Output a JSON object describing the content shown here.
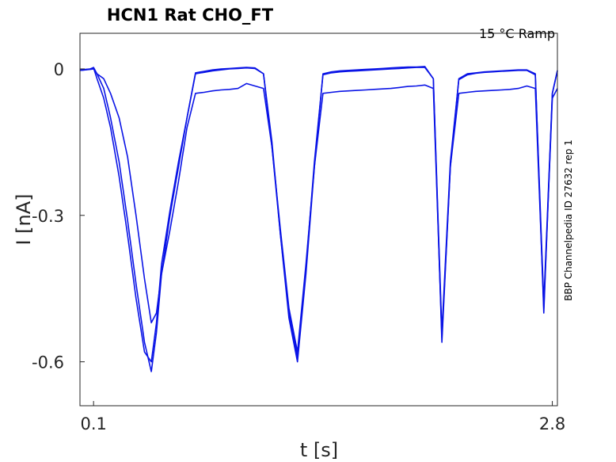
{
  "chart_data": {
    "type": "line",
    "title": "HCN1  Rat  CHO_FT",
    "annotation_top_right": "15 °C  Ramp",
    "annotation_side": "BBP Channelpedia ID 27632 rep 1",
    "xlabel": "t [s]",
    "ylabel": "I [nA]",
    "xlim": [
      0.02,
      2.83
    ],
    "ylim": [
      -0.69,
      0.073
    ],
    "x_ticks": [
      0.1,
      2.8
    ],
    "x_tick_labels": [
      "0.1",
      "2.8"
    ],
    "y_ticks": [
      0,
      -0.3,
      -0.6
    ],
    "y_tick_labels": [
      "0",
      "-0.3",
      "-0.6"
    ],
    "line_color": "#0a14e6",
    "grid": false,
    "series": [
      {
        "x": [
          0.02,
          0.05,
          0.08,
          0.1,
          0.12,
          0.16,
          0.2,
          0.25,
          0.3,
          0.35,
          0.4,
          0.44,
          0.47,
          0.5,
          0.55,
          0.6,
          0.65,
          0.7,
          0.75,
          0.8,
          0.85,
          0.9,
          0.95,
          1.0,
          1.05,
          1.1,
          1.15,
          1.2,
          1.25,
          1.3,
          1.35,
          1.4,
          1.45,
          1.5,
          1.55,
          1.6,
          1.65,
          1.7,
          1.75,
          1.8,
          1.85,
          1.9,
          1.95,
          2.0,
          2.05,
          2.1,
          2.15,
          2.2,
          2.25,
          2.3,
          2.35,
          2.4,
          2.45,
          2.5,
          2.55,
          2.6,
          2.65,
          2.7,
          2.75,
          2.8,
          2.83
        ],
        "y": [
          -0.002,
          -0.001,
          0.0,
          0.003,
          -0.01,
          -0.04,
          -0.1,
          -0.19,
          -0.31,
          -0.44,
          -0.56,
          -0.62,
          -0.54,
          -0.42,
          -0.3,
          -0.2,
          -0.1,
          -0.008,
          -0.005,
          -0.002,
          0.0,
          0.001,
          0.002,
          0.003,
          0.002,
          -0.01,
          -0.15,
          -0.34,
          -0.51,
          -0.6,
          -0.42,
          -0.2,
          -0.01,
          -0.006,
          -0.004,
          -0.003,
          -0.002,
          -0.001,
          0.0,
          0.001,
          0.002,
          0.003,
          0.004,
          0.004,
          0.005,
          -0.02,
          -0.56,
          -0.2,
          -0.02,
          -0.01,
          -0.008,
          -0.006,
          -0.005,
          -0.004,
          -0.003,
          -0.002,
          -0.002,
          -0.01,
          -0.5,
          -0.05,
          -0.003
        ]
      },
      {
        "x": [
          0.02,
          0.05,
          0.08,
          0.1,
          0.12,
          0.16,
          0.2,
          0.25,
          0.3,
          0.35,
          0.4,
          0.44,
          0.47,
          0.5,
          0.55,
          0.6,
          0.65,
          0.7,
          0.75,
          0.8,
          0.85,
          0.9,
          0.95,
          1.0,
          1.05,
          1.1,
          1.15,
          1.2,
          1.25,
          1.3,
          1.35,
          1.4,
          1.45,
          1.5,
          1.55,
          1.6,
          1.65,
          1.7,
          1.75,
          1.8,
          1.85,
          1.9,
          1.95,
          2.0,
          2.05,
          2.1,
          2.15,
          2.2,
          2.25,
          2.3,
          2.35,
          2.4,
          2.45,
          2.5,
          2.55,
          2.6,
          2.65,
          2.7,
          2.75,
          2.8,
          2.83
        ],
        "y": [
          -0.003,
          -0.002,
          0.0,
          0.002,
          -0.02,
          -0.06,
          -0.12,
          -0.22,
          -0.34,
          -0.47,
          -0.58,
          -0.6,
          -0.52,
          -0.4,
          -0.29,
          -0.19,
          -0.1,
          -0.01,
          -0.007,
          -0.004,
          -0.002,
          0.0,
          0.001,
          0.002,
          0.001,
          -0.01,
          -0.16,
          -0.34,
          -0.5,
          -0.59,
          -0.41,
          -0.19,
          -0.012,
          -0.008,
          -0.006,
          -0.005,
          -0.004,
          -0.003,
          -0.002,
          -0.001,
          0.0,
          0.001,
          0.002,
          0.003,
          0.003,
          -0.02,
          -0.54,
          -0.19,
          -0.022,
          -0.012,
          -0.009,
          -0.007,
          -0.006,
          -0.005,
          -0.004,
          -0.003,
          -0.003,
          -0.012,
          -0.48,
          -0.05,
          -0.004
        ]
      },
      {
        "x": [
          0.02,
          0.05,
          0.08,
          0.1,
          0.12,
          0.16,
          0.2,
          0.25,
          0.3,
          0.35,
          0.4,
          0.44,
          0.47,
          0.5,
          0.55,
          0.6,
          0.65,
          0.7,
          0.75,
          0.8,
          0.85,
          0.9,
          0.95,
          1.0,
          1.05,
          1.1,
          1.15,
          1.2,
          1.25,
          1.3,
          1.35,
          1.4,
          1.45,
          1.5,
          1.55,
          1.6,
          1.65,
          1.7,
          1.75,
          1.8,
          1.85,
          1.9,
          1.95,
          2.0,
          2.05,
          2.1,
          2.15,
          2.2,
          2.25,
          2.3,
          2.35,
          2.4,
          2.45,
          2.5,
          2.55,
          2.6,
          2.65,
          2.7,
          2.75,
          2.8,
          2.83
        ],
        "y": [
          -0.003,
          -0.002,
          -0.001,
          0.0,
          -0.01,
          -0.02,
          -0.05,
          -0.1,
          -0.18,
          -0.3,
          -0.43,
          -0.52,
          -0.5,
          -0.42,
          -0.33,
          -0.23,
          -0.12,
          -0.05,
          -0.048,
          -0.045,
          -0.043,
          -0.042,
          -0.04,
          -0.03,
          -0.035,
          -0.04,
          -0.16,
          -0.33,
          -0.49,
          -0.58,
          -0.4,
          -0.2,
          -0.05,
          -0.048,
          -0.046,
          -0.045,
          -0.044,
          -0.043,
          -0.042,
          -0.041,
          -0.04,
          -0.038,
          -0.036,
          -0.035,
          -0.033,
          -0.04,
          -0.55,
          -0.2,
          -0.05,
          -0.048,
          -0.046,
          -0.045,
          -0.044,
          -0.043,
          -0.042,
          -0.04,
          -0.035,
          -0.04,
          -0.49,
          -0.06,
          -0.04
        ]
      }
    ]
  }
}
